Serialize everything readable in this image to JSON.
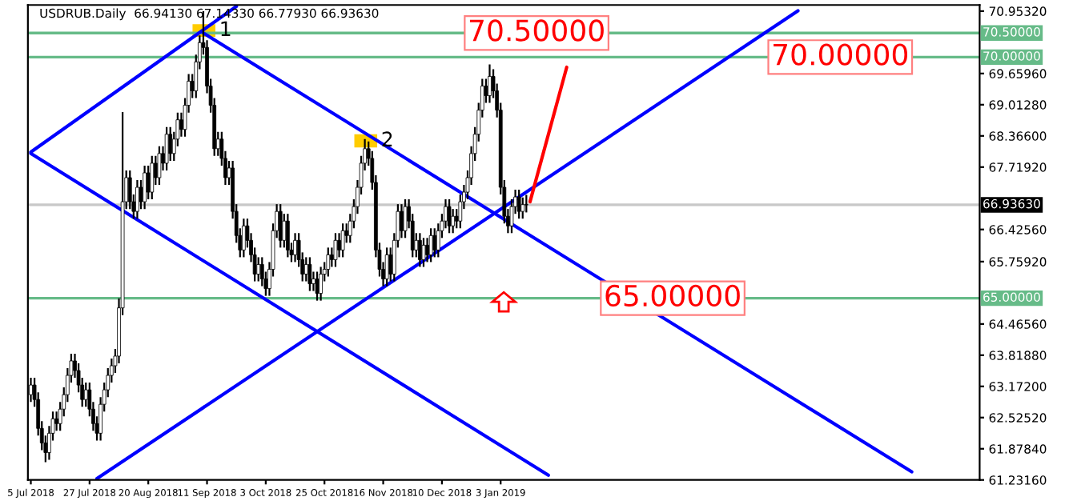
{
  "chart_data": {
    "type": "candlestick",
    "title": "USDRUB.Daily  66.94130 67.14330 66.77930 66.93630",
    "categories": [
      "5 Jul 2018",
      null,
      null,
      null,
      null,
      null,
      null,
      null,
      null,
      null,
      null,
      null,
      null,
      null,
      null,
      null,
      "27 Jul 2018",
      null,
      null,
      null,
      null,
      null,
      null,
      null,
      null,
      null,
      null,
      null,
      null,
      null,
      null,
      null,
      "20 Aug 2018",
      null,
      null,
      null,
      null,
      null,
      null,
      null,
      null,
      null,
      null,
      null,
      null,
      null,
      null,
      null,
      "11 Sep 2018",
      null,
      null,
      null,
      null,
      null,
      null,
      null,
      null,
      null,
      null,
      null,
      null,
      null,
      null,
      null,
      "3 Oct 2018",
      null,
      null,
      null,
      null,
      null,
      null,
      null,
      null,
      null,
      null,
      null,
      null,
      null,
      null,
      null,
      "25 Oct 2018",
      null,
      null,
      null,
      null,
      null,
      null,
      null,
      null,
      null,
      null,
      null,
      null,
      null,
      null,
      null,
      "16 Nov 2018",
      null,
      null,
      null,
      null,
      null,
      null,
      null,
      null,
      null,
      null,
      null,
      null,
      null,
      null,
      null,
      "10 Dec 2018",
      null,
      null,
      null,
      null,
      null,
      null,
      null,
      null,
      null,
      null,
      null,
      null,
      null,
      null,
      null,
      "3 Jan 2019",
      null,
      null,
      null,
      null,
      null,
      null,
      null,
      null,
      null,
      null,
      null,
      null,
      null,
      null,
      null,
      null,
      null,
      null,
      null,
      null,
      null,
      null,
      null,
      null,
      null,
      null,
      null,
      null,
      null,
      null,
      null,
      null,
      null,
      null,
      null,
      null,
      null,
      null,
      null,
      null,
      null,
      null,
      null,
      null,
      null,
      null,
      null,
      null,
      null,
      null,
      null,
      null,
      null,
      null,
      null,
      null,
      null,
      null,
      null,
      null,
      null,
      null,
      null,
      null,
      null,
      null,
      null,
      null,
      null,
      null,
      null,
      null,
      null,
      null,
      null,
      null,
      null,
      null,
      null,
      null,
      null,
      null,
      null,
      null,
      null,
      null,
      null,
      null,
      null,
      null,
      null,
      null,
      null,
      null,
      null,
      null,
      null,
      null,
      null,
      null,
      null,
      null,
      null,
      null,
      null,
      null,
      null,
      null,
      null,
      null,
      null,
      null,
      null,
      null,
      null,
      null,
      null,
      null,
      null,
      null,
      null,
      null,
      null,
      null,
      null,
      null,
      null,
      null,
      null,
      null
    ],
    "ohlc": [
      [
        63.0,
        63.35,
        62.85,
        63.2
      ],
      [
        63.2,
        63.35,
        62.75,
        62.9
      ],
      [
        62.9,
        63.05,
        62.15,
        62.3
      ],
      [
        62.3,
        62.45,
        61.85,
        62.0
      ],
      [
        62.0,
        62.15,
        61.6,
        61.8
      ],
      [
        61.8,
        62.35,
        61.65,
        62.2
      ],
      [
        62.2,
        62.65,
        62.05,
        62.5
      ],
      [
        62.5,
        62.65,
        62.25,
        62.4
      ],
      [
        62.4,
        62.85,
        62.25,
        62.7
      ],
      [
        62.7,
        63.15,
        62.55,
        63.0
      ],
      [
        63.0,
        63.55,
        62.85,
        63.4
      ],
      [
        63.4,
        63.85,
        63.25,
        63.7
      ],
      [
        63.7,
        63.85,
        63.35,
        63.5
      ],
      [
        63.5,
        63.65,
        63.05,
        63.2
      ],
      [
        63.2,
        63.35,
        62.75,
        62.9
      ],
      [
        62.9,
        63.25,
        62.75,
        63.1
      ],
      [
        63.1,
        63.25,
        62.55,
        62.7
      ],
      [
        62.7,
        62.85,
        62.25,
        62.4
      ],
      [
        62.4,
        62.55,
        62.05,
        62.2
      ],
      [
        62.2,
        62.95,
        62.05,
        62.8
      ],
      [
        62.8,
        63.25,
        62.65,
        63.1
      ],
      [
        63.1,
        63.55,
        62.95,
        63.4
      ],
      [
        63.4,
        63.75,
        63.25,
        63.6
      ],
      [
        63.6,
        63.95,
        63.45,
        63.8
      ],
      [
        63.8,
        65.0,
        63.65,
        64.8
      ],
      [
        64.8,
        68.86,
        64.65,
        67.0
      ],
      [
        67.0,
        67.65,
        66.85,
        67.5
      ],
      [
        67.5,
        67.65,
        66.85,
        67.0
      ],
      [
        67.0,
        67.15,
        66.65,
        66.8
      ],
      [
        66.8,
        67.45,
        66.65,
        67.3
      ],
      [
        67.3,
        67.45,
        66.85,
        67.0
      ],
      [
        67.0,
        67.75,
        66.85,
        67.6
      ],
      [
        67.6,
        67.75,
        67.05,
        67.2
      ],
      [
        67.2,
        67.95,
        67.05,
        67.8
      ],
      [
        67.8,
        67.95,
        67.35,
        67.5
      ],
      [
        67.5,
        68.15,
        67.35,
        68.0
      ],
      [
        68.0,
        68.15,
        67.65,
        67.8
      ],
      [
        67.8,
        68.55,
        67.65,
        68.4
      ],
      [
        68.4,
        68.55,
        67.85,
        68.0
      ],
      [
        68.0,
        68.45,
        67.85,
        68.3
      ],
      [
        68.3,
        68.85,
        68.15,
        68.7
      ],
      [
        68.7,
        68.85,
        68.35,
        68.5
      ],
      [
        68.5,
        69.15,
        68.35,
        69.0
      ],
      [
        69.0,
        69.65,
        68.85,
        69.5
      ],
      [
        69.5,
        69.65,
        69.15,
        69.3
      ],
      [
        69.3,
        70.05,
        69.15,
        69.9
      ],
      [
        69.9,
        70.45,
        69.75,
        70.3
      ],
      [
        70.3,
        70.95,
        70.05,
        70.2
      ],
      [
        70.2,
        70.35,
        69.25,
        69.4
      ],
      [
        69.4,
        69.55,
        68.85,
        69.0
      ],
      [
        69.0,
        69.15,
        67.95,
        68.1
      ],
      [
        68.1,
        68.45,
        67.95,
        68.3
      ],
      [
        68.3,
        68.45,
        67.75,
        67.9
      ],
      [
        67.9,
        68.05,
        67.35,
        67.5
      ],
      [
        67.5,
        67.85,
        67.35,
        67.7
      ],
      [
        67.7,
        67.85,
        66.65,
        66.8
      ],
      [
        66.8,
        66.95,
        66.15,
        66.3
      ],
      [
        66.3,
        66.45,
        65.85,
        66.0
      ],
      [
        66.0,
        66.65,
        65.85,
        66.5
      ],
      [
        66.5,
        66.65,
        66.05,
        66.2
      ],
      [
        66.2,
        66.35,
        65.75,
        65.9
      ],
      [
        65.9,
        66.05,
        65.35,
        65.5
      ],
      [
        65.5,
        65.85,
        65.35,
        65.7
      ],
      [
        65.7,
        65.85,
        65.25,
        65.4
      ],
      [
        65.4,
        65.55,
        65.05,
        65.2
      ],
      [
        65.2,
        65.75,
        65.05,
        65.6
      ],
      [
        65.6,
        66.55,
        65.45,
        66.4
      ],
      [
        66.4,
        66.95,
        66.25,
        66.8
      ],
      [
        66.8,
        66.95,
        66.05,
        66.2
      ],
      [
        66.2,
        66.75,
        66.05,
        66.6
      ],
      [
        66.6,
        66.75,
        65.85,
        66.0
      ],
      [
        66.0,
        66.15,
        65.75,
        65.9
      ],
      [
        65.9,
        66.35,
        65.75,
        66.2
      ],
      [
        66.2,
        66.35,
        65.65,
        65.8
      ],
      [
        65.8,
        65.95,
        65.35,
        65.5
      ],
      [
        65.5,
        65.85,
        65.35,
        65.7
      ],
      [
        65.7,
        65.85,
        65.15,
        65.3
      ],
      [
        65.3,
        65.55,
        65.15,
        65.4
      ],
      [
        65.4,
        65.55,
        64.95,
        65.1
      ],
      [
        65.1,
        65.65,
        64.95,
        65.5
      ],
      [
        65.5,
        65.75,
        65.35,
        65.6
      ],
      [
        65.6,
        66.05,
        65.45,
        65.9
      ],
      [
        65.9,
        66.05,
        65.65,
        65.8
      ],
      [
        65.8,
        66.35,
        65.65,
        66.2
      ],
      [
        66.2,
        66.35,
        65.85,
        66.0
      ],
      [
        66.0,
        66.55,
        65.85,
        66.4
      ],
      [
        66.4,
        66.55,
        66.15,
        66.3
      ],
      [
        66.3,
        66.75,
        66.15,
        66.6
      ],
      [
        66.6,
        67.05,
        66.45,
        66.9
      ],
      [
        66.9,
        67.45,
        66.75,
        67.3
      ],
      [
        67.3,
        67.95,
        67.15,
        67.8
      ],
      [
        67.8,
        68.3,
        67.65,
        68.1
      ],
      [
        68.1,
        68.25,
        67.75,
        67.9
      ],
      [
        67.9,
        68.05,
        67.25,
        67.4
      ],
      [
        67.4,
        67.55,
        65.85,
        66.0
      ],
      [
        66.0,
        66.15,
        65.45,
        65.6
      ],
      [
        65.6,
        65.75,
        65.25,
        65.4
      ],
      [
        65.4,
        66.05,
        65.25,
        65.9
      ],
      [
        65.9,
        66.05,
        65.35,
        65.5
      ],
      [
        65.5,
        66.35,
        65.35,
        66.2
      ],
      [
        66.2,
        66.95,
        66.05,
        66.8
      ],
      [
        66.8,
        66.95,
        66.25,
        66.4
      ],
      [
        66.4,
        67.05,
        66.25,
        66.9
      ],
      [
        66.9,
        67.05,
        66.45,
        66.6
      ],
      [
        66.6,
        66.75,
        65.85,
        66.0
      ],
      [
        66.0,
        66.35,
        65.85,
        66.2
      ],
      [
        66.2,
        66.35,
        65.65,
        65.8
      ],
      [
        65.8,
        66.25,
        65.65,
        66.1
      ],
      [
        66.1,
        66.25,
        65.75,
        65.9
      ],
      [
        65.9,
        66.45,
        65.75,
        66.3
      ],
      [
        66.3,
        66.45,
        65.85,
        66.0
      ],
      [
        66.0,
        66.55,
        65.85,
        66.4
      ],
      [
        66.4,
        66.75,
        66.25,
        66.6
      ],
      [
        66.6,
        67.05,
        66.45,
        66.9
      ],
      [
        66.9,
        67.05,
        66.35,
        66.5
      ],
      [
        66.5,
        66.85,
        66.35,
        66.7
      ],
      [
        66.7,
        66.85,
        66.45,
        66.6
      ],
      [
        66.6,
        67.15,
        66.45,
        67.0
      ],
      [
        67.0,
        67.35,
        66.85,
        67.2
      ],
      [
        67.2,
        67.65,
        67.05,
        67.5
      ],
      [
        67.5,
        68.15,
        67.35,
        68.0
      ],
      [
        68.0,
        68.55,
        67.85,
        68.4
      ],
      [
        68.4,
        69.05,
        68.25,
        68.9
      ],
      [
        68.9,
        69.55,
        68.75,
        69.4
      ],
      [
        69.4,
        69.55,
        69.05,
        69.2
      ],
      [
        69.2,
        69.85,
        69.05,
        69.6
      ],
      [
        69.6,
        69.75,
        69.15,
        69.3
      ],
      [
        69.3,
        69.45,
        68.75,
        68.9
      ],
      [
        68.9,
        69.05,
        67.15,
        67.3
      ],
      [
        67.3,
        67.45,
        66.55,
        66.7
      ],
      [
        66.7,
        66.85,
        66.35,
        66.5
      ],
      [
        66.5,
        67.05,
        66.35,
        66.9
      ],
      [
        66.9,
        67.25,
        66.75,
        67.1
      ],
      [
        67.1,
        67.25,
        66.65,
        66.8
      ],
      [
        66.8,
        67.09,
        66.65,
        66.94
      ],
      [
        66.9413,
        67.1433,
        66.7793,
        66.9363
      ],
      null,
      null,
      null,
      null,
      null,
      null,
      null,
      null,
      null,
      null,
      null,
      null,
      null,
      null,
      null,
      null,
      null,
      null,
      null,
      null,
      null,
      null,
      null,
      null,
      null,
      null,
      null,
      null,
      null,
      null,
      null,
      null,
      null,
      null,
      null,
      null,
      null,
      null,
      null,
      null,
      null,
      null,
      null,
      null,
      null,
      null,
      null,
      null,
      null,
      null,
      null,
      null,
      null,
      null,
      null,
      null,
      null,
      null,
      null,
      null,
      null,
      null,
      null,
      null,
      null,
      null,
      null,
      null,
      null,
      null,
      null,
      null,
      null,
      null,
      null,
      null,
      null,
      null,
      null,
      null,
      null,
      null,
      null,
      null,
      null,
      null,
      null,
      null,
      null,
      null,
      null,
      null,
      null,
      null,
      null,
      null,
      null,
      null,
      null,
      null,
      null,
      null,
      null,
      null,
      null,
      null,
      null,
      null,
      null,
      null,
      null,
      null,
      null,
      null,
      null,
      null,
      null,
      null,
      null,
      null,
      null,
      null,
      null
    ],
    "series": [
      {
        "type": "line",
        "color": "#0000ff",
        "values": [
          68.03,
          null,
          null,
          null,
          null,
          null,
          null,
          null,
          null,
          null,
          null,
          null,
          null,
          null,
          null,
          null,
          null,
          null,
          null,
          null,
          null,
          null,
          null,
          null,
          null,
          null,
          null,
          null,
          null,
          null,
          null,
          null,
          null,
          null,
          null,
          null,
          null,
          null,
          null,
          null,
          null,
          null,
          null,
          null,
          null,
          null,
          null,
          null,
          null,
          null,
          null,
          null,
          null,
          null,
          null,
          null,
          71.05,
          null,
          null,
          null,
          null,
          null,
          null,
          null,
          null,
          null,
          null,
          null,
          null,
          null,
          null,
          null,
          null,
          null,
          null,
          null,
          null,
          null,
          null,
          null,
          null,
          null,
          null,
          null,
          null,
          null,
          null,
          null,
          null,
          null,
          null,
          null,
          null,
          null,
          null,
          null,
          null,
          null,
          null,
          null,
          null,
          null,
          null,
          null,
          null,
          null,
          null,
          null,
          null,
          null,
          null,
          null,
          null,
          null,
          null,
          null,
          null,
          null,
          null,
          null,
          null,
          null,
          null,
          null,
          null,
          null,
          null,
          null,
          null,
          null,
          null,
          null,
          null,
          null,
          null,
          null,
          null,
          null,
          null,
          null,
          null,
          null,
          null,
          null,
          null,
          null,
          null,
          null,
          null,
          null,
          null,
          null,
          null,
          null,
          null,
          null,
          null,
          null,
          null,
          null,
          null,
          null,
          null,
          null,
          null,
          null,
          null,
          null,
          null,
          null,
          null,
          null,
          null,
          null,
          null,
          null,
          null,
          null,
          null,
          null,
          null,
          null,
          null,
          null,
          null,
          null,
          null,
          null,
          null,
          null,
          null,
          null,
          null,
          null,
          null,
          null,
          null,
          null,
          null,
          null,
          null,
          null,
          null,
          null,
          null,
          null,
          null,
          null,
          null,
          null,
          null,
          null,
          null,
          null,
          null,
          null,
          null,
          null,
          null,
          null,
          null,
          null,
          null,
          null,
          null,
          null,
          null,
          null,
          null,
          null,
          null,
          null,
          null,
          null,
          null,
          null,
          null,
          null,
          null,
          null,
          null,
          null,
          null,
          null,
          null,
          null,
          null,
          null,
          null,
          null,
          null,
          null,
          null,
          null,
          null,
          null,
          null,
          null,
          null
        ]
      },
      {
        "type": "line",
        "color": "#0000ff",
        "values": [
          null,
          null,
          null,
          null,
          null,
          null,
          null,
          null,
          null,
          null,
          null,
          null,
          null,
          null,
          null,
          null,
          null,
          null,
          null,
          null,
          null,
          null,
          null,
          null,
          null,
          null,
          null,
          null,
          null,
          null,
          null,
          null,
          null,
          null,
          null,
          null,
          null,
          null,
          null,
          null,
          null,
          null,
          null,
          null,
          null,
          null,
          null,
          70.5,
          null,
          null,
          null,
          null,
          null,
          null,
          null,
          null,
          null,
          null,
          null,
          null,
          null,
          null,
          null,
          null,
          null,
          null,
          null,
          null,
          null,
          null,
          null,
          null,
          null,
          null,
          null,
          null,
          null,
          null,
          null,
          null,
          null,
          null,
          null,
          null,
          null,
          null,
          null,
          null,
          null,
          null,
          null,
          null,
          null,
          null,
          null,
          null,
          null,
          null,
          null,
          null,
          null,
          null,
          null,
          null,
          null,
          null,
          null,
          null,
          null,
          null,
          null,
          null,
          null,
          null,
          null,
          null,
          null,
          null,
          null,
          null,
          null,
          null,
          null,
          null,
          null,
          null,
          null,
          null,
          null,
          null,
          null,
          null,
          null,
          null,
          null,
          null,
          null,
          null,
          null,
          null,
          null,
          null,
          null,
          null,
          null,
          null,
          null,
          null,
          null,
          null,
          null,
          null,
          null,
          null,
          null,
          null,
          null,
          null,
          null,
          null,
          null,
          null,
          null,
          null,
          null,
          null,
          null,
          null,
          null,
          null,
          null,
          null,
          null,
          null,
          null,
          null,
          null,
          null,
          null,
          null,
          null,
          null,
          null,
          null,
          null,
          null,
          null,
          null,
          null,
          null,
          null,
          null,
          null,
          null,
          null,
          null,
          null,
          null,
          null,
          null,
          null,
          null,
          null,
          null,
          null,
          null,
          null,
          null,
          null,
          null,
          null,
          null,
          null,
          null,
          null,
          null,
          null,
          null,
          null,
          null,
          null,
          null,
          null,
          null,
          null,
          null,
          null,
          null,
          null,
          null,
          null,
          null,
          null,
          null,
          null,
          null,
          null,
          null,
          null,
          null,
          61.4,
          null,
          null,
          null,
          null,
          null,
          null,
          null,
          null,
          null,
          null,
          null,
          null,
          null,
          null,
          null,
          null,
          null,
          null
        ]
      },
      {
        "type": "line",
        "color": "#0000ff",
        "values": [
          68.0,
          null,
          null,
          null,
          null,
          null,
          null,
          null,
          null,
          null,
          null,
          null,
          null,
          null,
          null,
          null,
          null,
          null,
          null,
          null,
          null,
          null,
          null,
          null,
          null,
          null,
          null,
          null,
          null,
          null,
          null,
          null,
          null,
          null,
          null,
          null,
          null,
          null,
          null,
          null,
          null,
          null,
          null,
          null,
          null,
          null,
          null,
          null,
          null,
          null,
          null,
          null,
          null,
          null,
          null,
          null,
          null,
          null,
          null,
          null,
          null,
          null,
          null,
          null,
          null,
          null,
          null,
          null,
          null,
          null,
          null,
          null,
          null,
          null,
          null,
          null,
          null,
          null,
          null,
          null,
          null,
          null,
          null,
          null,
          null,
          null,
          null,
          null,
          null,
          null,
          null,
          null,
          null,
          null,
          null,
          null,
          null,
          null,
          null,
          null,
          null,
          null,
          null,
          null,
          null,
          null,
          null,
          null,
          null,
          null,
          null,
          null,
          null,
          null,
          null,
          null,
          null,
          null,
          null,
          null,
          null,
          null,
          null,
          null,
          null,
          null,
          null,
          null,
          null,
          null,
          null,
          null,
          null,
          null,
          null,
          null,
          null,
          null,
          null,
          null,
          null,
          61.33,
          null,
          null,
          null,
          null,
          null,
          null,
          null,
          null,
          null,
          null,
          null,
          null,
          null,
          null,
          null,
          null,
          null,
          null,
          null,
          null,
          null,
          null,
          null,
          null,
          null,
          null,
          null,
          null,
          null,
          null,
          null,
          null,
          null,
          null,
          null,
          null,
          null,
          null,
          null,
          null,
          null,
          null,
          null,
          null,
          null,
          null,
          null,
          null,
          null,
          null,
          null,
          null,
          null,
          null,
          null,
          null,
          null,
          null,
          null,
          null,
          null,
          null,
          null,
          null,
          null,
          null,
          null,
          null,
          null,
          null,
          null,
          null,
          null,
          null,
          null,
          null,
          null,
          null,
          null,
          null,
          null,
          null,
          null,
          null,
          null,
          null,
          null,
          null,
          null,
          null,
          null,
          null,
          null,
          null,
          null,
          null,
          null,
          null,
          null,
          null,
          null,
          null,
          null,
          null,
          null,
          null,
          null,
          null,
          null,
          null,
          null,
          null,
          null,
          null,
          null,
          null,
          null
        ]
      },
      {
        "type": "line",
        "color": "#0000ff",
        "values": [
          null,
          null,
          null,
          null,
          null,
          null,
          null,
          null,
          null,
          null,
          null,
          null,
          null,
          null,
          null,
          null,
          null,
          null,
          61.26,
          null,
          null,
          null,
          null,
          null,
          null,
          null,
          null,
          null,
          null,
          null,
          null,
          null,
          null,
          null,
          null,
          null,
          null,
          null,
          null,
          null,
          null,
          null,
          null,
          null,
          null,
          null,
          null,
          null,
          null,
          null,
          null,
          null,
          null,
          null,
          null,
          null,
          null,
          null,
          null,
          null,
          null,
          null,
          null,
          null,
          null,
          null,
          null,
          null,
          null,
          null,
          null,
          null,
          null,
          null,
          null,
          null,
          null,
          null,
          null,
          null,
          null,
          null,
          null,
          null,
          null,
          null,
          null,
          null,
          null,
          null,
          null,
          null,
          null,
          null,
          null,
          null,
          null,
          null,
          null,
          null,
          null,
          null,
          null,
          null,
          null,
          null,
          null,
          null,
          null,
          null,
          null,
          null,
          null,
          null,
          null,
          null,
          null,
          null,
          null,
          null,
          null,
          null,
          null,
          null,
          null,
          null,
          null,
          null,
          null,
          null,
          null,
          null,
          null,
          null,
          null,
          null,
          null,
          null,
          null,
          null,
          null,
          null,
          null,
          null,
          null,
          null,
          null,
          null,
          null,
          null,
          null,
          null,
          null,
          null,
          null,
          null,
          null,
          null,
          null,
          null,
          null,
          null,
          null,
          null,
          null,
          null,
          null,
          null,
          null,
          null,
          null,
          null,
          null,
          null,
          null,
          null,
          null,
          null,
          null,
          null,
          null,
          null,
          null,
          null,
          null,
          null,
          null,
          null,
          null,
          null,
          null,
          null,
          null,
          null,
          null,
          null,
          null,
          null,
          null,
          null,
          null,
          null,
          null,
          null,
          null,
          null,
          null,
          null,
          null,
          70.96,
          null,
          null,
          null,
          null,
          null,
          null,
          null,
          null,
          null,
          null,
          null,
          null,
          null,
          null,
          null,
          null,
          null,
          null,
          null,
          null,
          null,
          null,
          null,
          null,
          null,
          null,
          null,
          null,
          null,
          null,
          null,
          null,
          null,
          null,
          null,
          null,
          null,
          null,
          null,
          null,
          null,
          null,
          null,
          null,
          null,
          null,
          null,
          null,
          null
        ]
      },
      {
        "type": "line",
        "color": "#ff0000",
        "values": [
          null,
          null,
          null,
          null,
          null,
          null,
          null,
          null,
          null,
          null,
          null,
          null,
          null,
          null,
          null,
          null,
          null,
          null,
          null,
          null,
          null,
          null,
          null,
          null,
          null,
          null,
          null,
          null,
          null,
          null,
          null,
          null,
          null,
          null,
          null,
          null,
          null,
          null,
          null,
          null,
          null,
          null,
          null,
          null,
          null,
          null,
          null,
          null,
          null,
          null,
          null,
          null,
          null,
          null,
          null,
          null,
          null,
          null,
          null,
          null,
          null,
          null,
          null,
          null,
          null,
          null,
          null,
          null,
          null,
          null,
          null,
          null,
          null,
          null,
          null,
          null,
          null,
          null,
          null,
          null,
          null,
          null,
          null,
          null,
          null,
          null,
          null,
          null,
          null,
          null,
          null,
          null,
          null,
          null,
          null,
          null,
          null,
          null,
          null,
          null,
          null,
          null,
          null,
          null,
          null,
          null,
          null,
          null,
          null,
          null,
          null,
          null,
          null,
          null,
          null,
          null,
          null,
          null,
          null,
          null,
          null,
          null,
          null,
          null,
          null,
          null,
          null,
          null,
          null,
          null,
          null,
          null,
          null,
          null,
          null,
          null,
          67.0,
          null,
          null,
          null,
          null,
          null,
          null,
          null,
          null,
          null,
          69.79,
          null,
          null,
          null,
          null,
          null,
          null,
          null,
          null,
          null,
          null,
          null,
          null,
          null,
          null,
          null,
          null,
          null,
          null,
          null,
          null,
          null,
          null,
          null,
          null,
          null,
          null,
          null,
          null,
          null,
          null,
          null,
          null,
          null,
          null,
          null,
          null,
          null,
          null,
          null,
          null,
          null,
          null,
          null,
          null,
          null,
          null,
          null,
          null,
          null,
          null,
          null,
          null,
          null,
          null,
          null,
          null,
          null,
          null,
          null,
          null,
          null,
          null,
          null,
          null,
          null,
          null,
          null,
          null,
          null,
          null,
          null,
          null,
          null,
          null,
          null,
          null,
          null,
          null,
          null,
          null,
          null,
          null,
          null,
          null,
          null,
          null,
          null,
          null,
          null,
          null,
          null,
          null,
          null,
          null,
          null,
          null,
          null,
          null,
          null,
          null,
          null,
          null,
          null,
          null,
          null,
          null,
          null,
          null,
          null,
          null,
          null,
          null
        ]
      }
    ],
    "ylim": [
      61.2316,
      71.08
    ],
    "yticks": [
      {
        "value": 61.2316,
        "label": "61.23160"
      },
      {
        "value": 61.8784,
        "label": "61.87840"
      },
      {
        "value": 62.5252,
        "label": "62.52520"
      },
      {
        "value": 63.172,
        "label": "63.17200"
      },
      {
        "value": 63.8188,
        "label": "63.81880"
      },
      {
        "value": 64.4656,
        "label": "64.46560"
      },
      {
        "value": 65.7592,
        "label": "65.75920"
      },
      {
        "value": 66.4256,
        "label": "66.42560"
      },
      {
        "value": 67.7192,
        "label": "67.71920"
      },
      {
        "value": 68.366,
        "label": "68.36600"
      },
      {
        "value": 69.0128,
        "label": "69.01280"
      },
      {
        "value": 69.6596,
        "label": "69.65960"
      },
      {
        "value": 70.9532,
        "label": "70.95320"
      }
    ],
    "ref_lines": [
      {
        "axis": "y",
        "value": 70.5,
        "label": "70.50000",
        "color": "#66bb88"
      },
      {
        "axis": "y",
        "value": 70.0,
        "label": "70.00000",
        "color": "#66bb88"
      },
      {
        "axis": "y",
        "value": 65.0,
        "label": "65.00000",
        "color": "#66bb88"
      },
      {
        "axis": "y",
        "value": 66.9363,
        "label": "66.93630",
        "color": "#c8c8c8"
      }
    ],
    "annotations": [
      {
        "text": "70.50000",
        "y": 70.5
      },
      {
        "text": "70.00000",
        "y": 70.0
      },
      {
        "text": "65.00000",
        "y": 65.0
      },
      {
        "text": "1",
        "y": 70.55
      },
      "2"
    ],
    "grid": false,
    "legend": false
  }
}
